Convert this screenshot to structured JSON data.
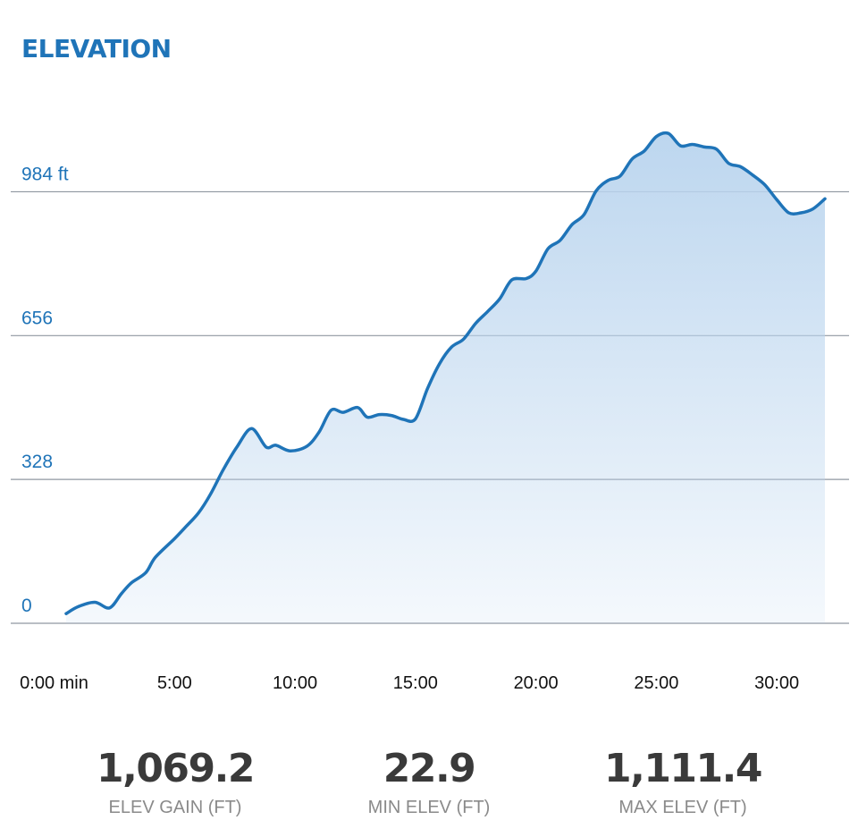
{
  "colors": {
    "accent": "#1f74b8",
    "line": "#1f74b8",
    "fill": "#b9d4ee",
    "grid": "#8f97a0"
  },
  "chart_data": {
    "type": "area",
    "title": "ELEVATION",
    "xlabel": "",
    "ylabel": "",
    "x_unit": "minutes",
    "xlim": [
      -1.8,
      33.0
    ],
    "ylim": [
      0,
      1250
    ],
    "grid": "horizontal",
    "y_ticks": [
      {
        "value": 0,
        "label": "0"
      },
      {
        "value": 328,
        "label": "328"
      },
      {
        "value": 656,
        "label": "656"
      },
      {
        "value": 984,
        "label": "984 ft"
      }
    ],
    "x_ticks": [
      {
        "value": 0,
        "label": "0:00 min"
      },
      {
        "value": 5,
        "label": "5:00"
      },
      {
        "value": 10,
        "label": "10:00"
      },
      {
        "value": 15,
        "label": "15:00"
      },
      {
        "value": 20,
        "label": "20:00"
      },
      {
        "value": 25,
        "label": "25:00"
      },
      {
        "value": 30,
        "label": "30:00"
      }
    ],
    "series": [
      {
        "x": [
          0.5,
          1.0,
          1.7,
          2.3,
          2.8,
          3.2,
          3.8,
          4.2,
          5.0,
          5.5,
          6.0,
          6.5,
          7.0,
          7.6,
          8.2,
          8.8,
          9.2,
          9.8,
          10.5,
          11.0,
          11.5,
          12.0,
          12.6,
          13.0,
          13.5,
          14.0,
          14.5,
          15.0,
          15.5,
          16.0,
          16.5,
          17.0,
          17.5,
          18.0,
          18.5,
          19.0,
          19.6,
          20.0,
          20.5,
          21.0,
          21.5,
          22.0,
          22.5,
          23.0,
          23.5,
          24.0,
          24.5,
          25.0,
          25.5,
          26.0,
          26.5,
          27.0,
          27.5,
          28.0,
          28.5,
          29.0,
          29.5,
          30.0,
          30.5,
          31.0,
          31.5,
          32.0
        ],
        "y": [
          22,
          38,
          48,
          35,
          68,
          92,
          115,
          150,
          193,
          222,
          252,
          295,
          348,
          403,
          444,
          402,
          406,
          393,
          404,
          436,
          486,
          481,
          492,
          470,
          476,
          474,
          465,
          466,
          535,
          592,
          630,
          648,
          684,
          711,
          740,
          783,
          786,
          803,
          854,
          873,
          909,
          932,
          986,
          1010,
          1020,
          1059,
          1077,
          1110,
          1117,
          1089,
          1092,
          1086,
          1081,
          1049,
          1041,
          1022,
          1000,
          966,
          936,
          936,
          945,
          968
        ]
      }
    ]
  },
  "stats": [
    {
      "value": "1,069.2",
      "label": "ELEV GAIN (FT)"
    },
    {
      "value": "22.9",
      "label": "MIN ELEV (FT)"
    },
    {
      "value": "1,111.4",
      "label": "MAX ELEV (FT)"
    }
  ]
}
